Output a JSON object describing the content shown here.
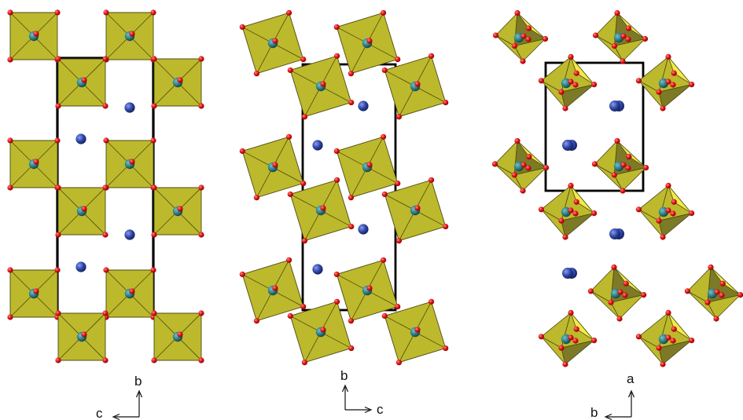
{
  "panels": [
    {
      "id": "left",
      "axes": {
        "vertical": "b",
        "horizontal": "c"
      }
    },
    {
      "id": "middle",
      "axes": {
        "vertical": "b",
        "horizontal": "c"
      }
    },
    {
      "id": "right",
      "axes": {
        "vertical": "a",
        "horizontal": "b"
      }
    }
  ],
  "colors": {
    "octahedron_face": "#bdb92c",
    "octahedron_light": "#f2ea4a",
    "octahedron_dark": "#7c7a26",
    "octahedron_edge": "#4d4a14",
    "metal_atom": "#2f7f86",
    "oxygen_atom": "#e01515",
    "cation_atom": "#2e46a6",
    "cell_outline": "#000000"
  }
}
